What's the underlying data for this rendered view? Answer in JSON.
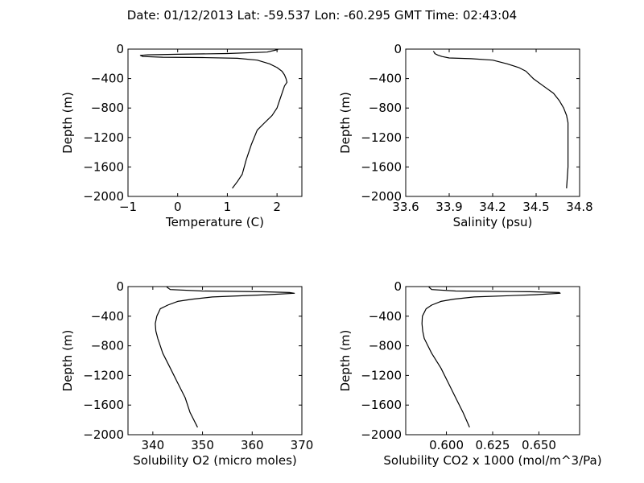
{
  "figure": {
    "title": "Date: 01/12/2013  Lat:  -59.537 Lon:  -60.295  GMT Time: 02:43:04"
  },
  "chart_data": [
    {
      "type": "line",
      "xlabel": "Temperature (C)",
      "ylabel": "Depth (m)",
      "xlim": [
        -1,
        2.5
      ],
      "ylim": [
        -2000,
        0
      ],
      "xticks": [
        -1,
        0,
        1,
        2
      ],
      "xtick_labels": [
        "−1",
        "0",
        "1",
        "2"
      ],
      "yticks": [
        0,
        -400,
        -800,
        -1200,
        -1600,
        -2000
      ],
      "ytick_labels": [
        "0",
        "−400",
        "−800",
        "−1200",
        "−1600",
        "−2000"
      ],
      "grid": false,
      "x": [
        2.02,
        1.8,
        1.0,
        0.0,
        -0.6,
        -0.75,
        -0.7,
        -0.3,
        0.5,
        1.2,
        1.6,
        1.85,
        2.0,
        2.1,
        2.15,
        2.18,
        2.2,
        2.15,
        2.1,
        2.05,
        2.0,
        1.9,
        1.75,
        1.6,
        1.48,
        1.38,
        1.3,
        1.2,
        1.1
      ],
      "y": [
        -5,
        -40,
        -60,
        -70,
        -78,
        -85,
        -100,
        -110,
        -115,
        -125,
        -150,
        -200,
        -250,
        -300,
        -350,
        -400,
        -450,
        -500,
        -600,
        -700,
        -800,
        -900,
        -1000,
        -1100,
        -1300,
        -1500,
        -1700,
        -1800,
        -1890
      ]
    },
    {
      "type": "line",
      "xlabel": "Salinity (psu)",
      "ylabel": "Depth (m)",
      "xlim": [
        33.6,
        34.8
      ],
      "ylim": [
        -2000,
        0
      ],
      "xticks": [
        33.6,
        33.9,
        34.2,
        34.5,
        34.8
      ],
      "xtick_labels": [
        "33.6",
        "33.9",
        "34.2",
        "34.5",
        "34.8"
      ],
      "yticks": [
        0,
        -400,
        -800,
        -1200,
        -1600,
        -2000
      ],
      "ytick_labels": [
        "0",
        "−400",
        "−800",
        "−1200",
        "−1600",
        "−2000"
      ],
      "grid": false,
      "x": [
        33.79,
        33.8,
        33.8,
        33.82,
        33.85,
        33.9,
        34.05,
        34.2,
        34.3,
        34.38,
        34.43,
        34.48,
        34.55,
        34.62,
        34.66,
        34.69,
        34.71,
        34.72,
        34.72,
        34.72,
        34.71
      ],
      "y": [
        -30,
        -50,
        -60,
        -80,
        -100,
        -120,
        -130,
        -150,
        -200,
        -250,
        -300,
        -400,
        -500,
        -600,
        -700,
        -800,
        -900,
        -1000,
        -1200,
        -1600,
        -1890
      ]
    },
    {
      "type": "line",
      "xlabel": "Solubility O2 (micro moles)",
      "ylabel": "Depth (m)",
      "xlim": [
        335,
        370
      ],
      "ylim": [
        -2000,
        0
      ],
      "xticks": [
        340,
        350,
        360,
        370
      ],
      "xtick_labels": [
        "340",
        "350",
        "360",
        "370"
      ],
      "yticks": [
        0,
        -400,
        -800,
        -1200,
        -1600,
        -2000
      ],
      "ytick_labels": [
        "0",
        "−400",
        "−800",
        "−1200",
        "−1600",
        "−2000"
      ],
      "grid": false,
      "x": [
        342.8,
        343.5,
        350,
        362,
        367.5,
        368.5,
        363,
        352,
        348,
        345,
        343,
        341.5,
        340.8,
        340.5,
        340.6,
        341,
        341.5,
        342,
        343.5,
        345,
        346.5,
        347.5,
        349
      ],
      "y": [
        -5,
        -40,
        -60,
        -70,
        -80,
        -90,
        -110,
        -140,
        -170,
        -200,
        -250,
        -300,
        -400,
        -500,
        -600,
        -700,
        -800,
        -900,
        -1100,
        -1300,
        -1500,
        -1700,
        -1900
      ]
    },
    {
      "type": "line",
      "xlabel": "Solubility CO2 x 1000 (mol/m^3/Pa)",
      "ylabel": "Depth (m)",
      "xlim": [
        0.578,
        0.672
      ],
      "ylim": [
        -2000,
        0
      ],
      "xticks": [
        0.6,
        0.625,
        0.65
      ],
      "xtick_labels": [
        "0.600",
        "0.625",
        "0.650"
      ],
      "yticks": [
        0,
        -400,
        -800,
        -1200,
        -1600,
        -2000
      ],
      "ytick_labels": [
        "0",
        "−400",
        "−800",
        "−1200",
        "−1600",
        "−2000"
      ],
      "grid": false,
      "x": [
        0.5905,
        0.592,
        0.605,
        0.645,
        0.661,
        0.6615,
        0.648,
        0.615,
        0.604,
        0.597,
        0.592,
        0.589,
        0.587,
        0.5868,
        0.5872,
        0.588,
        0.59,
        0.592,
        0.597,
        0.601,
        0.605,
        0.609,
        0.6125
      ],
      "y": [
        -5,
        -40,
        -60,
        -70,
        -80,
        -90,
        -110,
        -140,
        -170,
        -200,
        -250,
        -300,
        -400,
        -500,
        -600,
        -700,
        -800,
        -900,
        -1100,
        -1300,
        -1500,
        -1700,
        -1900
      ]
    }
  ]
}
